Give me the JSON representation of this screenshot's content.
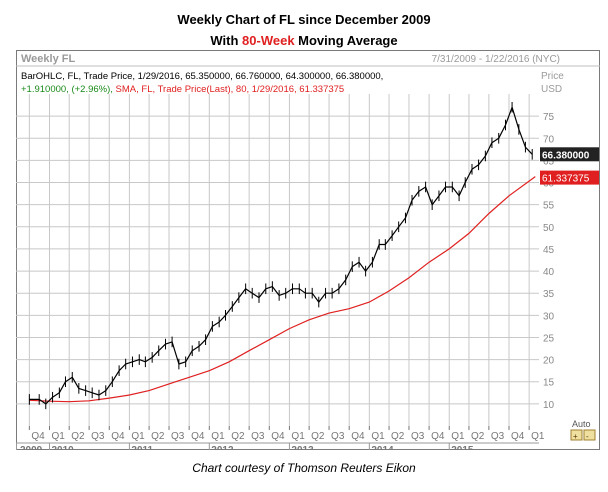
{
  "title": {
    "line1": "Weekly Chart of FL since December 2009",
    "line2_before": "With ",
    "line2_highlight": "80-Week",
    "line2_after": " Moving Average"
  },
  "caption": "Chart courtesy of Thomson Reuters Eikon",
  "panel": {
    "name": "Weekly FL",
    "date_range": "7/31/2009 - 1/22/2016 (NYC)",
    "price_label": "Price",
    "price_unit": "USD",
    "auto_label": "Auto",
    "legend_line1": "BarOHLC, FL, Trade Price,  1/29/2016, 65.350000,  66.760000,  64.300000,  66.380000,",
    "legend_line2a": "+1.910000,  (+2.96%), ",
    "legend_line2b": "SMA, FL, Trade Price(Last),  80,  1/29/2016, 61.337375"
  },
  "colors": {
    "price": "#000000",
    "sma": "#e02020",
    "grid": "#c8c8c8",
    "positive": "#1a8a1a"
  },
  "chart_data": {
    "type": "line",
    "title": "Weekly Chart of FL since December 2009",
    "ylim": [
      5,
      80
    ],
    "y_ticks": [
      10,
      15,
      20,
      25,
      30,
      35,
      40,
      45,
      50,
      55,
      60,
      65,
      70,
      75
    ],
    "x_ticks": [
      "Q4",
      "Q1",
      "Q2",
      "Q3",
      "Q4",
      "Q1",
      "Q2",
      "Q3",
      "Q4",
      "Q1",
      "Q2",
      "Q3",
      "Q4",
      "Q1",
      "Q2",
      "Q3",
      "Q4",
      "Q1",
      "Q2",
      "Q3",
      "Q4",
      "Q1",
      "Q2",
      "Q3",
      "Q4",
      "Q1"
    ],
    "years": [
      "2009",
      "2010",
      "2011",
      "2012",
      "2013",
      "2014",
      "2015"
    ],
    "last_price_label": "66.380000",
    "last_sma_label": "61.337375",
    "series": [
      {
        "name": "BarOHLC, FL, Trade Price",
        "x": [
          "2009-10-01",
          "2009-11-15",
          "2009-12-15",
          "2010-01-15",
          "2010-02-15",
          "2010-03-15",
          "2010-04-15",
          "2010-05-15",
          "2010-06-15",
          "2010-07-15",
          "2010-08-15",
          "2010-09-15",
          "2010-10-15",
          "2010-11-15",
          "2010-12-15",
          "2011-01-15",
          "2011-02-15",
          "2011-03-15",
          "2011-04-15",
          "2011-05-15",
          "2011-06-15",
          "2011-07-15",
          "2011-08-15",
          "2011-09-15",
          "2011-10-15",
          "2011-11-15",
          "2011-12-15",
          "2012-01-15",
          "2012-02-15",
          "2012-03-15",
          "2012-04-15",
          "2012-05-15",
          "2012-06-15",
          "2012-07-15",
          "2012-08-15",
          "2012-09-15",
          "2012-10-15",
          "2012-11-15",
          "2012-12-15",
          "2013-01-15",
          "2013-02-15",
          "2013-03-15",
          "2013-04-15",
          "2013-05-15",
          "2013-06-15",
          "2013-07-15",
          "2013-08-15",
          "2013-09-15",
          "2013-10-15",
          "2013-11-15",
          "2013-12-15",
          "2014-01-15",
          "2014-02-15",
          "2014-03-15",
          "2014-04-15",
          "2014-05-15",
          "2014-06-15",
          "2014-07-15",
          "2014-08-15",
          "2014-09-15",
          "2014-10-15",
          "2014-11-15",
          "2014-12-15",
          "2015-01-15",
          "2015-02-15",
          "2015-03-15",
          "2015-04-15",
          "2015-05-15",
          "2015-06-15",
          "2015-07-15",
          "2015-08-15",
          "2015-09-15",
          "2015-10-15",
          "2015-11-15",
          "2015-12-15",
          "2016-01-15"
        ],
        "values": [
          11,
          11,
          10,
          11.5,
          12.5,
          15,
          16,
          13.5,
          13,
          12.5,
          12,
          13,
          15,
          17.5,
          19,
          19.5,
          20,
          19.5,
          20.5,
          22,
          23.5,
          24,
          19,
          19.5,
          22,
          23,
          24.5,
          27.5,
          28.5,
          30,
          32,
          34,
          36,
          35,
          34,
          36,
          36.5,
          34.5,
          35,
          36,
          36,
          35,
          35,
          33,
          35,
          35,
          36,
          38,
          41,
          42,
          40,
          42,
          46,
          46,
          48,
          50,
          52,
          56,
          58,
          59,
          55,
          57,
          59,
          59,
          57,
          60,
          63,
          64,
          66,
          69,
          70,
          73,
          77,
          72,
          68,
          66.38
        ]
      },
      {
        "name": "SMA, FL, Trade Price(Last), 80",
        "x": [
          "2009-10-01",
          "2010-01-01",
          "2010-04-01",
          "2010-07-01",
          "2010-10-01",
          "2011-01-01",
          "2011-04-01",
          "2011-07-01",
          "2011-10-01",
          "2012-01-01",
          "2012-04-01",
          "2012-07-01",
          "2012-10-01",
          "2013-01-01",
          "2013-04-01",
          "2013-07-01",
          "2013-10-01",
          "2014-01-01",
          "2014-04-01",
          "2014-07-01",
          "2014-10-01",
          "2015-01-01",
          "2015-04-01",
          "2015-07-01",
          "2015-10-01",
          "2016-01-29"
        ],
        "values": [
          10.8,
          10.6,
          10.5,
          10.7,
          11.3,
          12,
          13,
          14.5,
          16,
          17.5,
          19.5,
          22,
          24.5,
          27,
          29,
          30.5,
          31.5,
          33,
          35.5,
          38.5,
          42,
          45,
          48.5,
          53,
          57,
          61.34
        ]
      }
    ]
  }
}
